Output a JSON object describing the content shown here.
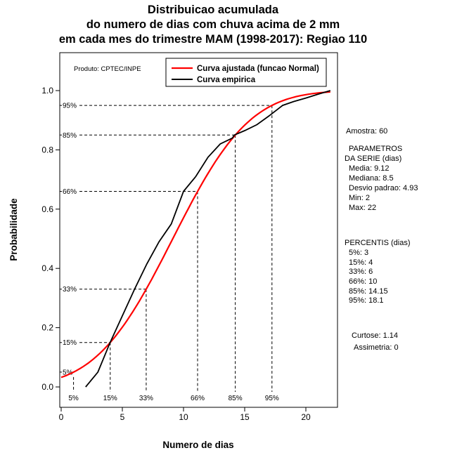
{
  "title": {
    "line1": "Distribuicao acumulada",
    "line2": "do numero de dias com chuva acima de 2 mm",
    "line3": "em cada mes do trimestre MAM (1998-2017): Regiao 110"
  },
  "produto_label": "Produto: CPTEC/INPE",
  "legend": {
    "fitted": "Curva ajustada (funcao Normal)",
    "empirical": "Curva empirica"
  },
  "stats": {
    "amostra": "Amostra: 60",
    "params_header1": "PARAMETROS",
    "params_header2": "DA SERIE (dias)",
    "media": "Media: 9.12",
    "mediana": "Mediana: 8.5",
    "desvio": "Desvio padrao: 4.93",
    "min": "Min: 2",
    "max": "Max: 22",
    "percentis_header": "PERCENTIS (dias)",
    "p5": "5%: 3",
    "p15": "15%: 4",
    "p33": "33%: 6",
    "p66": "66%: 10",
    "p85": "85%: 14.15",
    "p95": "95%: 18.1",
    "curtose": "Curtose: 1.14",
    "assimetria": "Assimetria: 0"
  },
  "chart_data": {
    "type": "line",
    "title": "Distribuicao acumulada do numero de dias com chuva acima de 2 mm em cada mes do trimestre MAM (1998-2017): Regiao 110",
    "xlabel": "Numero de dias",
    "ylabel": "Probabilidade",
    "xlim": [
      -0.1,
      22.6
    ],
    "ylim": [
      -0.07,
      1.08
    ],
    "x_ticks": [
      0,
      5,
      10,
      15,
      20
    ],
    "y_ticks": [
      "0.0",
      "0.2",
      "0.4",
      "0.6",
      "0.8",
      "1.0"
    ],
    "grid": false,
    "legend_position": "top-center-inside",
    "series": [
      {
        "name": "Curva ajustada (funcao Normal)",
        "color": "#ff0000",
        "model": "normal_cdf",
        "mean": 9.12,
        "sd": 4.93,
        "x_start": 0,
        "x_end": 22
      },
      {
        "name": "Curva empirica",
        "color": "#000000",
        "points": [
          [
            2,
            0
          ],
          [
            3,
            0.05
          ],
          [
            4,
            0.15
          ],
          [
            5,
            0.24
          ],
          [
            6,
            0.33
          ],
          [
            7,
            0.415
          ],
          [
            8,
            0.49
          ],
          [
            9,
            0.55
          ],
          [
            10,
            0.66
          ],
          [
            11,
            0.71
          ],
          [
            12,
            0.775
          ],
          [
            13,
            0.82
          ],
          [
            14,
            0.84
          ],
          [
            14.15,
            0.85
          ],
          [
            15,
            0.865
          ],
          [
            16,
            0.885
          ],
          [
            17,
            0.915
          ],
          [
            18,
            0.947
          ],
          [
            18.1,
            0.95
          ],
          [
            19,
            0.963
          ],
          [
            20,
            0.975
          ],
          [
            21,
            0.988
          ],
          [
            22,
            1.0
          ]
        ]
      }
    ],
    "percentile_markers": [
      {
        "label": "5%",
        "p": 0.05,
        "x": 1.01
      },
      {
        "label": "15%",
        "p": 0.15,
        "x": 4.01
      },
      {
        "label": "33%",
        "p": 0.33,
        "x": 6.95
      },
      {
        "label": "66%",
        "p": 0.66,
        "x": 11.15
      },
      {
        "label": "85%",
        "p": 0.85,
        "x": 14.23
      },
      {
        "label": "95%",
        "p": 0.95,
        "x": 17.23
      }
    ]
  }
}
